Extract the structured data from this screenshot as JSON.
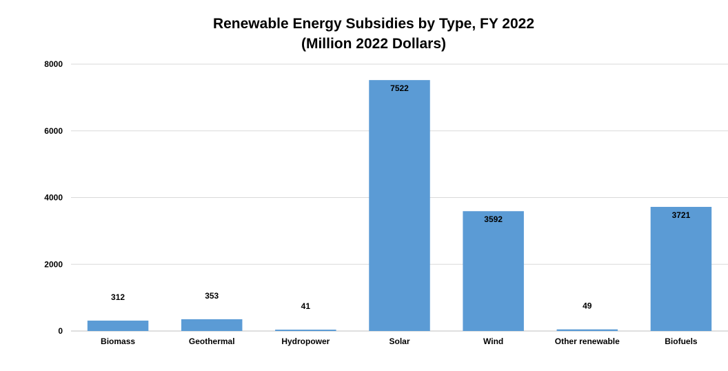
{
  "chart_data": {
    "type": "bar",
    "title": "Renewable Energy Subsidies by Type, FY 2022",
    "subtitle": "(Million 2022 Dollars)",
    "xlabel": "",
    "ylabel": "",
    "categories": [
      "Biomass",
      "Geothermal",
      "Hydropower",
      "Solar",
      "Wind",
      "Other renewable",
      "Biofuels"
    ],
    "values": [
      312,
      353,
      41,
      7522,
      3592,
      49,
      3721
    ],
    "ylim": [
      0,
      8000
    ],
    "yticks": [
      0,
      2000,
      4000,
      6000,
      8000
    ],
    "grid": true,
    "legend": "none",
    "bar_color": "#5b9bd5",
    "grid_color": "#d9d9d9",
    "axis_color": "#bfbfbf"
  }
}
